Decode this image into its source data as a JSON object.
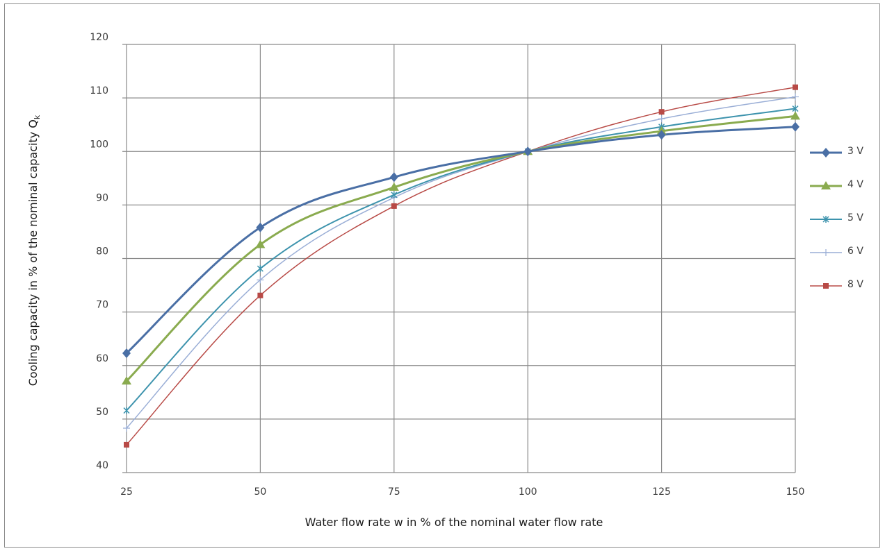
{
  "chart_data": {
    "type": "line",
    "title": "",
    "xlabel": "Water flow rate  w  in % of the nominal water flow rate",
    "ylabel": "Cooling capacity in % of the nominal capacity  Q",
    "ylabel_subscript": "k",
    "x": [
      25,
      50,
      75,
      100,
      125,
      150
    ],
    "xticks": [
      "25",
      "50",
      "75",
      "100",
      "125",
      "150"
    ],
    "yticks": [
      "40",
      "50",
      "60",
      "70",
      "80",
      "90",
      "100",
      "110",
      "120"
    ],
    "xlim": [
      25,
      150
    ],
    "ylim": [
      40,
      120
    ],
    "grid": true,
    "legend_position": "right",
    "series": [
      {
        "name": "3  V",
        "values": [
          62.3,
          85.8,
          95.2,
          100,
          103.1,
          104.6
        ],
        "color": "#4a6fa5",
        "marker": "diamond",
        "width": 3
      },
      {
        "name": "4  V",
        "values": [
          57.1,
          82.6,
          93.3,
          100,
          103.8,
          106.6
        ],
        "color": "#8aab4f",
        "marker": "triangle",
        "width": 3
      },
      {
        "name": "5  V",
        "values": [
          51.6,
          78.1,
          91.9,
          100,
          104.6,
          108.0
        ],
        "color": "#3d93ad",
        "marker": "star",
        "width": 2
      },
      {
        "name": "6  V",
        "values": [
          48.3,
          76.0,
          91.4,
          100,
          106.1,
          110.2
        ],
        "color": "#9aaed6",
        "marker": "plus",
        "width": 1.5
      },
      {
        "name": "8  V",
        "values": [
          45.2,
          73.1,
          89.8,
          100,
          107.4,
          112.0
        ],
        "color": "#b84a46",
        "marker": "square",
        "width": 1.5
      }
    ]
  }
}
